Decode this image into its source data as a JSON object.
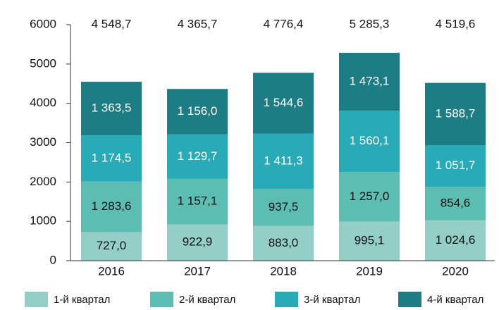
{
  "chart_data": {
    "type": "stacked_bar",
    "categories": [
      "2016",
      "2017",
      "2018",
      "2019",
      "2020"
    ],
    "series": [
      {
        "name": "1-й квартал",
        "color": "#93cfc6",
        "values": [
          727.0,
          922.9,
          883.0,
          995.1,
          1024.6
        ],
        "value_labels": [
          "727,0",
          "922,9",
          "883,0",
          "995,1",
          "1 024,6"
        ]
      },
      {
        "name": "2-й квартал",
        "color": "#5cbdb2",
        "values": [
          1283.6,
          1157.1,
          937.5,
          1257.0,
          854.6
        ],
        "value_labels": [
          "1 283,6",
          "1 157,1",
          "937,5",
          "1 257,0",
          "854,6"
        ]
      },
      {
        "name": "3-й квартал",
        "color": "#29aab7",
        "values": [
          1174.5,
          1129.7,
          1411.3,
          1560.1,
          1051.7
        ],
        "value_labels": [
          "1 174,5",
          "1 129,7",
          "1 411,3",
          "1 560,1",
          "1 051,7"
        ]
      },
      {
        "name": "4-й квартал",
        "color": "#1c7d85",
        "values": [
          1363.5,
          1156.0,
          1544.6,
          1473.1,
          1588.7
        ],
        "value_labels": [
          "1 363,5",
          "1 156,0",
          "1 544,6",
          "1 473,1",
          "1 588,7"
        ]
      }
    ],
    "totals": [
      4548.7,
      4365.7,
      4776.4,
      5285.3,
      4519.6
    ],
    "total_labels": [
      "4 548,7",
      "4 365,7",
      "4 776,4",
      "5 285,3",
      "4 519,6"
    ],
    "ylim": [
      0,
      6000
    ],
    "yticks": [
      0,
      1000,
      2000,
      3000,
      4000,
      5000,
      6000
    ],
    "legend": "bottom"
  }
}
